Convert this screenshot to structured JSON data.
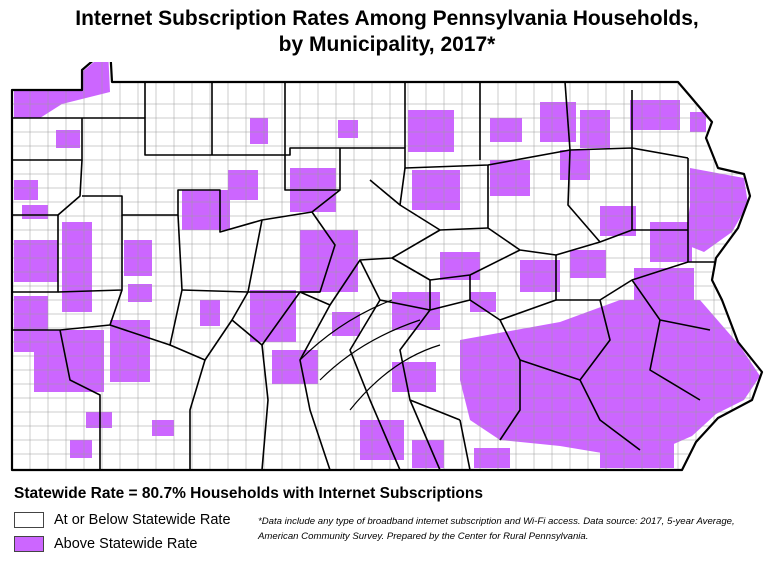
{
  "title": {
    "line1": "Internet Subscription Rates Among Pennsylvania Households,",
    "line2": "by Municipality, 2017*"
  },
  "statewide": "Statewide Rate = 80.7% Households with Internet Subscriptions",
  "legend": [
    {
      "label": "At or Below Statewide Rate",
      "color": "#ffffff"
    },
    {
      "label": "Above Statewide Rate",
      "color": "#cc66ff"
    }
  ],
  "footnote": {
    "line1": "*Data include any type of broadband internet subscription and Wi-Fi access. Data source: 2017, 5-year Average,",
    "line2": "American Community Survey. Prepared by the Center for Rural Pennsylvania."
  },
  "colors": {
    "above": "#cc66ff",
    "at_or_below": "#ffffff",
    "border": "#000000"
  }
}
